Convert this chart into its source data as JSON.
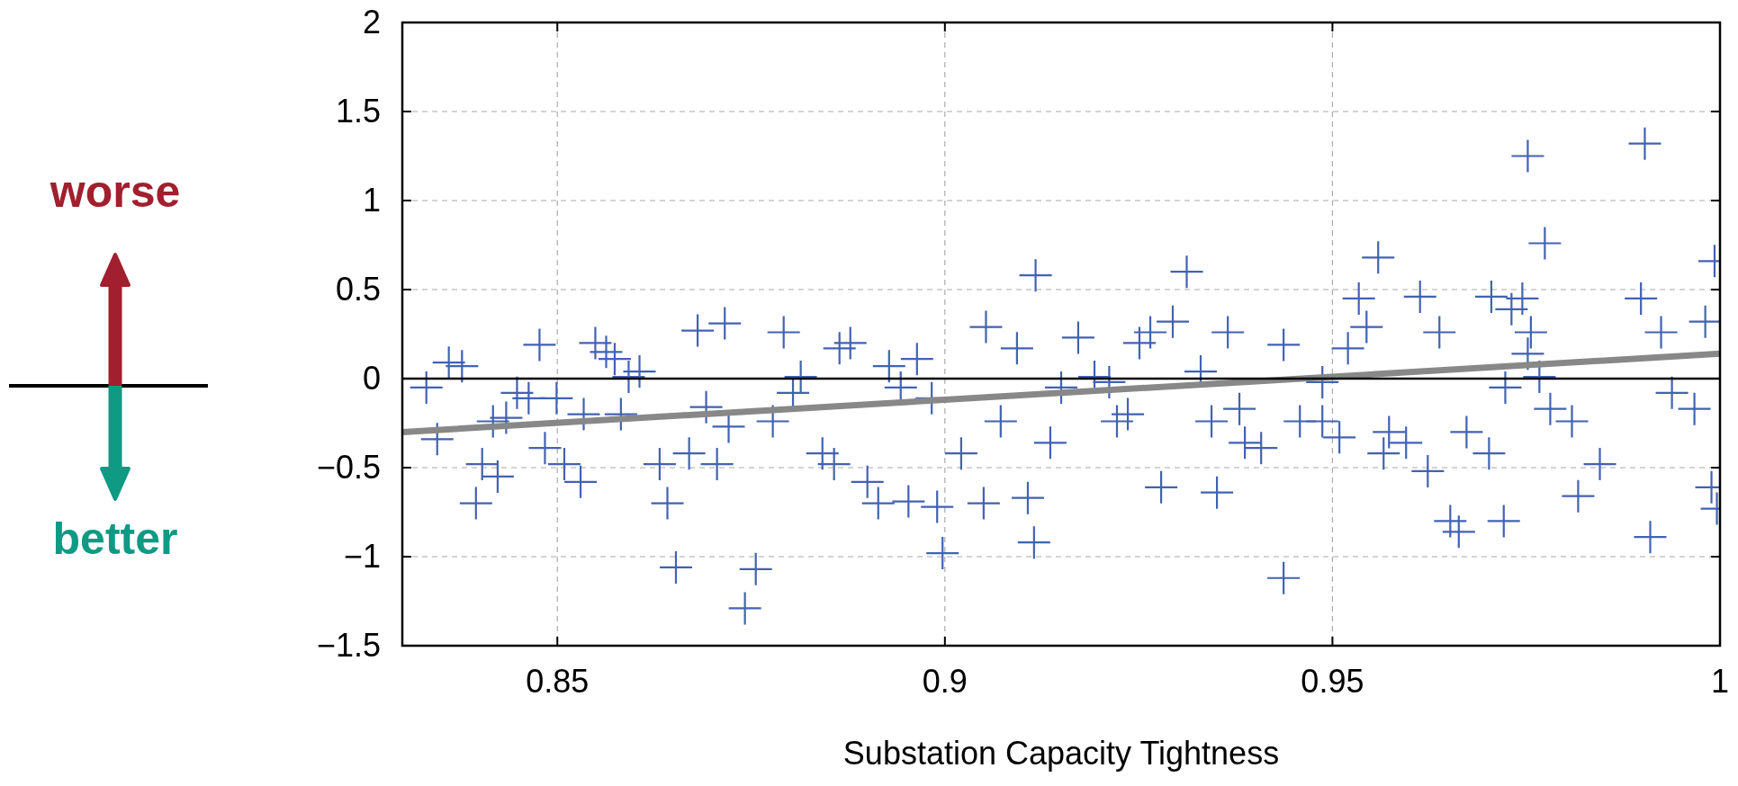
{
  "chart_data": {
    "type": "scatter",
    "xlabel": "Substation Capacity Tightness",
    "xlim": [
      0.83,
      1
    ],
    "xticks": [
      0.85,
      0.9,
      0.95,
      1
    ],
    "ylim": [
      -1.5,
      2
    ],
    "yticks": [
      {
        "value": -1.5,
        "label": "−1.5"
      },
      {
        "value": -1,
        "label": "−1"
      },
      {
        "value": -0.5,
        "label": "−0.5"
      },
      0,
      0.5,
      1,
      1.5,
      2
    ],
    "grid": true,
    "marker": "cross",
    "ref_lines": [
      {
        "axis": "y",
        "value": 0,
        "color": "#000000"
      }
    ],
    "annotations": [
      "worse",
      "better"
    ],
    "series": [
      {
        "color": "#4262b2",
        "x": [
          0.8331,
          0.8345,
          0.836,
          0.8377,
          0.8395,
          0.8403,
          0.8417,
          0.8423,
          0.8434,
          0.8448,
          0.8463,
          0.8477,
          0.8484,
          0.8499,
          0.8509,
          0.853,
          0.8534,
          0.8549,
          0.8563,
          0.8574,
          0.8582,
          0.8592,
          0.8606,
          0.8632,
          0.8642,
          0.8653,
          0.867,
          0.8681,
          0.8692,
          0.8706,
          0.8716,
          0.8721,
          0.8742,
          0.8756,
          0.8778,
          0.8792,
          0.8804,
          0.8814,
          0.8842,
          0.8857,
          0.8864,
          0.8878,
          0.89,
          0.8914,
          0.8928,
          0.8943,
          0.8964,
          0.8983,
          0.899,
          0.8997,
          0.9021,
          0.9053,
          0.9072,
          0.9093,
          0.9107,
          0.9115,
          0.9117,
          0.9136,
          0.915,
          0.9172,
          0.9193,
          0.9222,
          0.9236,
          0.9251,
          0.9265,
          0.9279,
          0.9294,
          0.9312,
          0.933,
          0.9344,
          0.9351,
          0.9365,
          0.9387,
          0.9408,
          0.9437,
          0.9437,
          0.9458,
          0.9487,
          0.9509,
          0.952,
          0.9534,
          0.9544,
          0.9559,
          0.9573,
          0.9595,
          0.9613,
          0.9623,
          0.9638,
          0.9652,
          0.9663,
          0.9673,
          0.9702,
          0.9705,
          0.9721,
          0.9731,
          0.9745,
          0.9756,
          0.9752,
          0.9774,
          0.9781,
          0.9809,
          0.9817,
          0.9845,
          0.9898,
          0.991,
          0.9903,
          0.9924,
          0.9938,
          0.9967,
          0.9981,
          0.9989,
          0.9993,
          0.9996,
          0.9752,
          0.9767,
          0.9723,
          0.9566,
          0.9487,
          0.938,
          0.9212,
          0.905,
          0.8953
        ],
        "values": [
          -0.05,
          -0.34,
          0.09,
          0.07,
          -0.7,
          -0.48,
          -0.24,
          -0.55,
          -0.22,
          -0.08,
          -0.11,
          0.19,
          -0.39,
          -0.11,
          -0.48,
          -0.58,
          -0.2,
          0.2,
          0.15,
          0.11,
          -0.2,
          0.01,
          0.04,
          -0.48,
          -0.7,
          -1.06,
          -0.42,
          0.27,
          -0.16,
          -0.48,
          0.31,
          -0.27,
          -1.29,
          -1.07,
          -0.24,
          0.26,
          -0.08,
          0.01,
          -0.42,
          -0.48,
          0.17,
          0.2,
          -0.58,
          -0.7,
          0.07,
          -0.05,
          0.11,
          -0.11,
          -0.72,
          -0.98,
          -0.42,
          0.29,
          -0.24,
          0.17,
          -0.67,
          -0.92,
          0.58,
          -0.36,
          -0.05,
          0.23,
          0.01,
          -0.24,
          -0.2,
          0.2,
          0.26,
          -0.61,
          0.32,
          0.6,
          0.04,
          -0.24,
          -0.64,
          0.26,
          -0.36,
          -0.39,
          -1.12,
          0.19,
          -0.24,
          -0.02,
          -0.33,
          0.17,
          0.45,
          0.29,
          0.68,
          -0.3,
          -0.36,
          0.46,
          -0.52,
          0.26,
          -0.8,
          -0.86,
          -0.3,
          -0.42,
          0.46,
          -0.8,
          0.39,
          0.45,
          0.26,
          1.25,
          0.76,
          -0.17,
          -0.24,
          -0.66,
          -0.48,
          0.45,
          -0.89,
          1.32,
          0.26,
          -0.08,
          -0.17,
          0.32,
          -0.61,
          0.66,
          -0.73,
          0.14,
          0.01,
          -0.05,
          -0.42,
          -0.24,
          -0.17,
          -0.02,
          -0.7,
          -0.69
        ]
      },
      {
        "type": "line",
        "marker": "none",
        "color": "#888888",
        "x": [
          0.83,
          1
        ],
        "values": [
          -0.3,
          0.14
        ]
      }
    ]
  }
}
